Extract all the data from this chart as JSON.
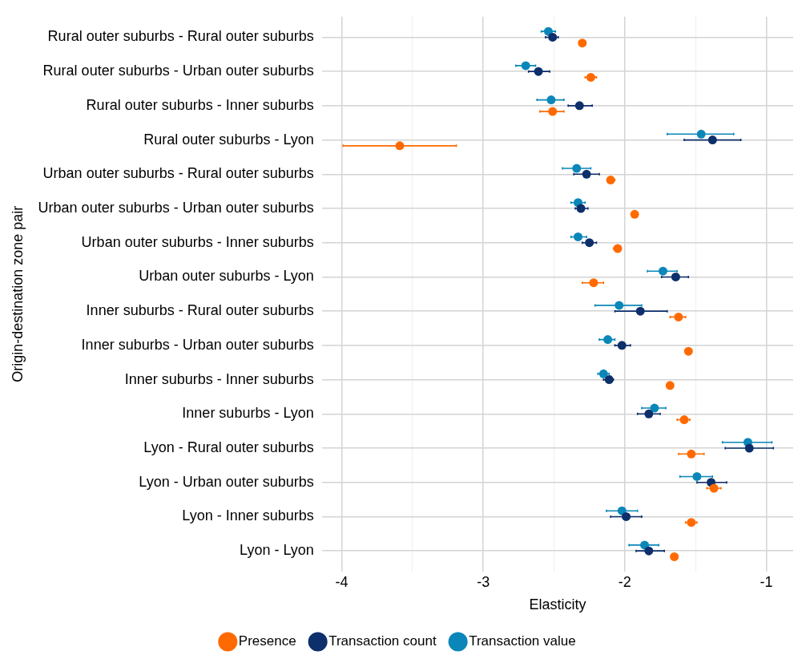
{
  "chart_data": {
    "type": "scatter",
    "orientation": "horizontal",
    "xlabel": "Elasticity",
    "ylabel": "Origin-destination zone pair",
    "categories": [
      "Rural outer suburbs - Rural outer suburbs",
      "Rural outer suburbs - Urban outer suburbs",
      "Rural outer suburbs - Inner suburbs",
      "Rural outer suburbs - Lyon",
      "Urban outer suburbs - Rural outer suburbs",
      "Urban outer suburbs - Urban outer suburbs",
      "Urban outer suburbs - Inner suburbs",
      "Urban outer suburbs - Lyon",
      "Inner suburbs - Rural outer suburbs",
      "Inner suburbs - Urban outer suburbs",
      "Inner suburbs - Inner suburbs",
      "Inner suburbs - Lyon",
      "Lyon - Rural outer suburbs",
      "Lyon - Urban outer suburbs",
      "Lyon - Inner suburbs",
      "Lyon - Lyon"
    ],
    "series": [
      {
        "name": "Presence",
        "color": "#ff6a00",
        "values": [
          -2.3,
          -2.24,
          -2.51,
          -3.59,
          -2.1,
          -1.93,
          -2.05,
          -2.22,
          -1.62,
          -1.55,
          -1.68,
          -1.58,
          -1.53,
          -1.37,
          -1.53,
          -1.65
        ],
        "errors": [
          [
            -2.32,
            -2.28
          ],
          [
            -2.28,
            -2.2
          ],
          [
            -2.6,
            -2.43
          ],
          [
            -3.99,
            -3.19
          ],
          [
            -2.12,
            -2.07
          ],
          [
            -1.95,
            -1.91
          ],
          [
            -2.08,
            -2.03
          ],
          [
            -2.3,
            -2.15
          ],
          [
            -1.68,
            -1.57
          ],
          [
            -1.57,
            -1.54
          ],
          [
            -1.7,
            -1.66
          ],
          [
            -1.63,
            -1.54
          ],
          [
            -1.62,
            -1.44
          ],
          [
            -1.42,
            -1.32
          ],
          [
            -1.57,
            -1.49
          ],
          [
            -1.67,
            -1.63
          ]
        ]
      },
      {
        "name": "Transaction count",
        "color": "#0d2f6b",
        "values": [
          -2.51,
          -2.61,
          -2.32,
          -1.38,
          -2.27,
          -2.31,
          -2.25,
          -1.64,
          -1.89,
          -2.02,
          -2.11,
          -1.83,
          -1.12,
          -1.39,
          -1.99,
          -1.83
        ],
        "errors": [
          [
            -2.56,
            -2.47
          ],
          [
            -2.68,
            -2.53
          ],
          [
            -2.4,
            -2.23
          ],
          [
            -1.58,
            -1.18
          ],
          [
            -2.36,
            -2.18
          ],
          [
            -2.35,
            -2.26
          ],
          [
            -2.3,
            -2.2
          ],
          [
            -1.74,
            -1.55
          ],
          [
            -2.07,
            -1.7
          ],
          [
            -2.07,
            -1.96
          ],
          [
            -2.15,
            -2.08
          ],
          [
            -1.91,
            -1.75
          ],
          [
            -1.29,
            -0.95
          ],
          [
            -1.49,
            -1.28
          ],
          [
            -2.1,
            -1.88
          ],
          [
            -1.92,
            -1.72
          ]
        ]
      },
      {
        "name": "Transaction value",
        "color": "#0a87b8",
        "values": [
          -2.54,
          -2.7,
          -2.52,
          -1.46,
          -2.34,
          -2.33,
          -2.33,
          -1.73,
          -2.04,
          -2.12,
          -2.15,
          -1.79,
          -1.13,
          -1.49,
          -2.02,
          -1.86
        ],
        "errors": [
          [
            -2.59,
            -2.49
          ],
          [
            -2.77,
            -2.63
          ],
          [
            -2.62,
            -2.43
          ],
          [
            -1.7,
            -1.23
          ],
          [
            -2.44,
            -2.24
          ],
          [
            -2.38,
            -2.28
          ],
          [
            -2.38,
            -2.27
          ],
          [
            -1.84,
            -1.63
          ],
          [
            -2.21,
            -1.88
          ],
          [
            -2.18,
            -2.07
          ],
          [
            -2.19,
            -2.11
          ],
          [
            -1.88,
            -1.71
          ],
          [
            -1.31,
            -0.96
          ],
          [
            -1.61,
            -1.38
          ],
          [
            -2.13,
            -1.91
          ],
          [
            -1.97,
            -1.76
          ]
        ]
      }
    ],
    "xlim": [
      -4.14,
      -0.81
    ],
    "xticks": [
      -4,
      {
        "value": -3.5,
        "label": null
      },
      -3,
      {
        "value": -2.5,
        "label": null
      },
      -2,
      {
        "value": -1.5,
        "label": null
      },
      -1
    ],
    "grid": true,
    "legend": "bottom",
    "marker": "circle"
  }
}
